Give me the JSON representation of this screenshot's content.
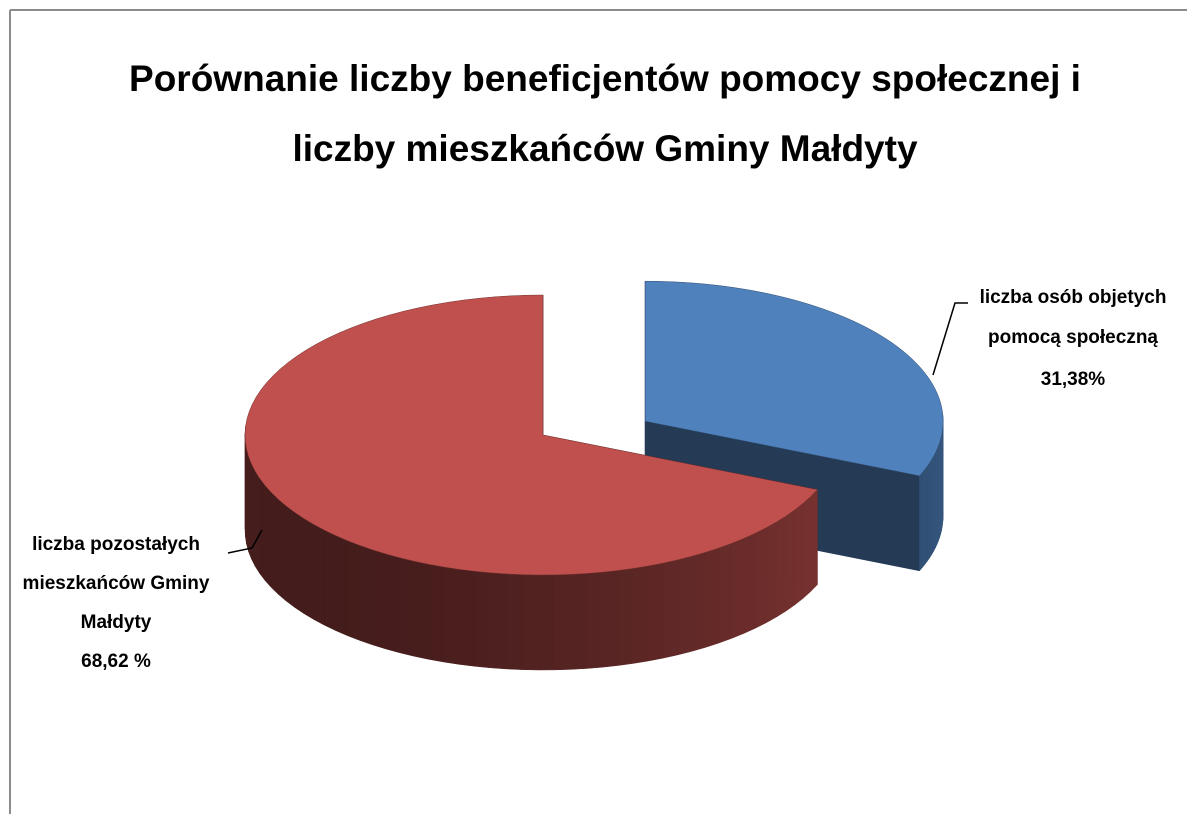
{
  "chart_data": {
    "type": "pie",
    "title": "Porównanie liczby beneficjentów pomocy społecznej i liczby mieszkańców Gminy Małdyty",
    "categories": [
      "liczba osób objetych pomocą społeczną",
      "liczba pozostałych mieszkańców Gminy Małdyty"
    ],
    "values": [
      31.38,
      68.62
    ],
    "value_labels": [
      "31,38%",
      "68,62 %"
    ],
    "colors": [
      "#4f81bd",
      "#c0504d"
    ],
    "exploded": [
      true,
      false
    ]
  }
}
